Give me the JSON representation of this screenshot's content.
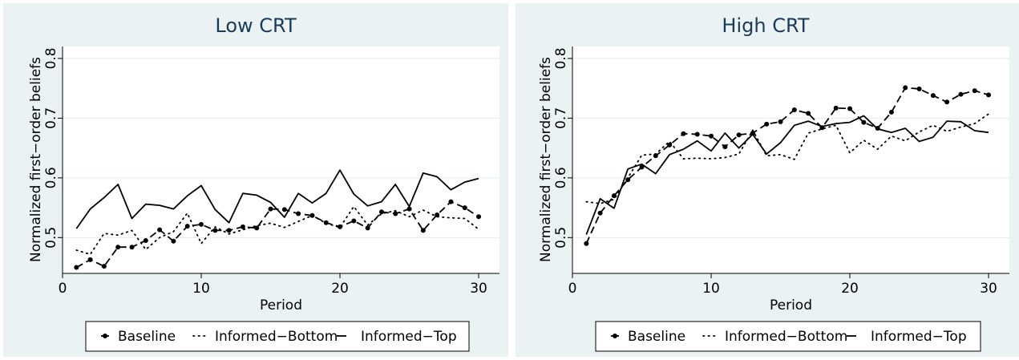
{
  "chart_data": [
    {
      "type": "line",
      "title": "Low CRT",
      "xlabel": "Period",
      "ylabel": "Normalized first−order beliefs",
      "xlim": [
        0,
        31.5
      ],
      "ylim": [
        0.44,
        0.82
      ],
      "xticks": [
        0,
        10,
        20,
        30
      ],
      "yticks": [
        0.5,
        0.6,
        0.7,
        0.8
      ],
      "ytick_labels": [
        "0.5",
        "0.6",
        "0.7",
        "0.8"
      ],
      "grid": true,
      "legend_position": "bottom",
      "x": [
        1,
        2,
        3,
        4,
        5,
        6,
        7,
        8,
        9,
        10,
        11,
        12,
        13,
        14,
        15,
        16,
        17,
        18,
        19,
        20,
        21,
        22,
        23,
        24,
        25,
        26,
        27,
        28,
        29,
        30
      ],
      "series": [
        {
          "name": "Baseline",
          "style": "dash-dot-markers",
          "values": [
            0.45,
            0.463,
            0.452,
            0.484,
            0.484,
            0.495,
            0.513,
            0.494,
            0.519,
            0.522,
            0.512,
            0.512,
            0.518,
            0.516,
            0.548,
            0.547,
            0.54,
            0.537,
            0.525,
            0.518,
            0.528,
            0.516,
            0.543,
            0.54,
            0.548,
            0.512,
            0.538,
            0.56,
            0.55,
            0.535
          ]
        },
        {
          "name": "Informed−Bottom",
          "style": "dotted",
          "values": [
            0.479,
            0.472,
            0.507,
            0.504,
            0.512,
            0.48,
            0.5,
            0.51,
            0.541,
            0.49,
            0.518,
            0.506,
            0.513,
            0.52,
            0.524,
            0.517,
            0.527,
            0.537,
            0.524,
            0.517,
            0.552,
            0.521,
            0.54,
            0.545,
            0.535,
            0.546,
            0.535,
            0.533,
            0.532,
            0.514
          ]
        },
        {
          "name": "Informed−Top",
          "style": "solid",
          "values": [
            0.515,
            0.548,
            0.567,
            0.589,
            0.532,
            0.556,
            0.554,
            0.548,
            0.57,
            0.587,
            0.547,
            0.525,
            0.574,
            0.571,
            0.559,
            0.534,
            0.574,
            0.558,
            0.574,
            0.613,
            0.573,
            0.553,
            0.56,
            0.589,
            0.552,
            0.608,
            0.602,
            0.58,
            0.593,
            0.599
          ]
        }
      ]
    },
    {
      "type": "line",
      "title": "High CRT",
      "xlabel": "Period",
      "ylabel": "Normalized first−order beliefs",
      "xlim": [
        0,
        31.5
      ],
      "ylim": [
        0.44,
        0.82
      ],
      "xticks": [
        0,
        10,
        20,
        30
      ],
      "yticks": [
        0.5,
        0.6,
        0.7,
        0.8
      ],
      "ytick_labels": [
        "0.5",
        "0.6",
        "0.7",
        "0.8"
      ],
      "grid": true,
      "legend_position": "bottom",
      "x": [
        1,
        2,
        3,
        4,
        5,
        6,
        7,
        8,
        9,
        10,
        11,
        12,
        13,
        14,
        15,
        16,
        17,
        18,
        19,
        20,
        21,
        22,
        23,
        24,
        25,
        26,
        27,
        28,
        29,
        30
      ],
      "series": [
        {
          "name": "Baseline",
          "style": "dash-dot-markers",
          "values": [
            0.49,
            0.541,
            0.57,
            0.597,
            0.618,
            0.637,
            0.655,
            0.674,
            0.673,
            0.67,
            0.652,
            0.672,
            0.675,
            0.69,
            0.694,
            0.714,
            0.708,
            0.684,
            0.717,
            0.716,
            0.693,
            0.683,
            0.71,
            0.751,
            0.749,
            0.738,
            0.727,
            0.74,
            0.746,
            0.739
          ]
        },
        {
          "name": "Informed−Bottom",
          "style": "dotted",
          "values": [
            0.56,
            0.557,
            0.564,
            0.6,
            0.638,
            0.64,
            0.661,
            0.632,
            0.633,
            0.632,
            0.634,
            0.64,
            0.68,
            0.637,
            0.639,
            0.631,
            0.675,
            0.682,
            0.688,
            0.642,
            0.663,
            0.648,
            0.67,
            0.662,
            0.677,
            0.688,
            0.678,
            0.685,
            0.691,
            0.707
          ]
        },
        {
          "name": "Informed−Top",
          "style": "solid",
          "values": [
            0.505,
            0.565,
            0.549,
            0.615,
            0.623,
            0.607,
            0.639,
            0.648,
            0.662,
            0.645,
            0.675,
            0.65,
            0.673,
            0.64,
            0.659,
            0.688,
            0.695,
            0.686,
            0.691,
            0.693,
            0.704,
            0.682,
            0.676,
            0.683,
            0.661,
            0.668,
            0.695,
            0.694,
            0.679,
            0.676
          ]
        }
      ]
    }
  ]
}
